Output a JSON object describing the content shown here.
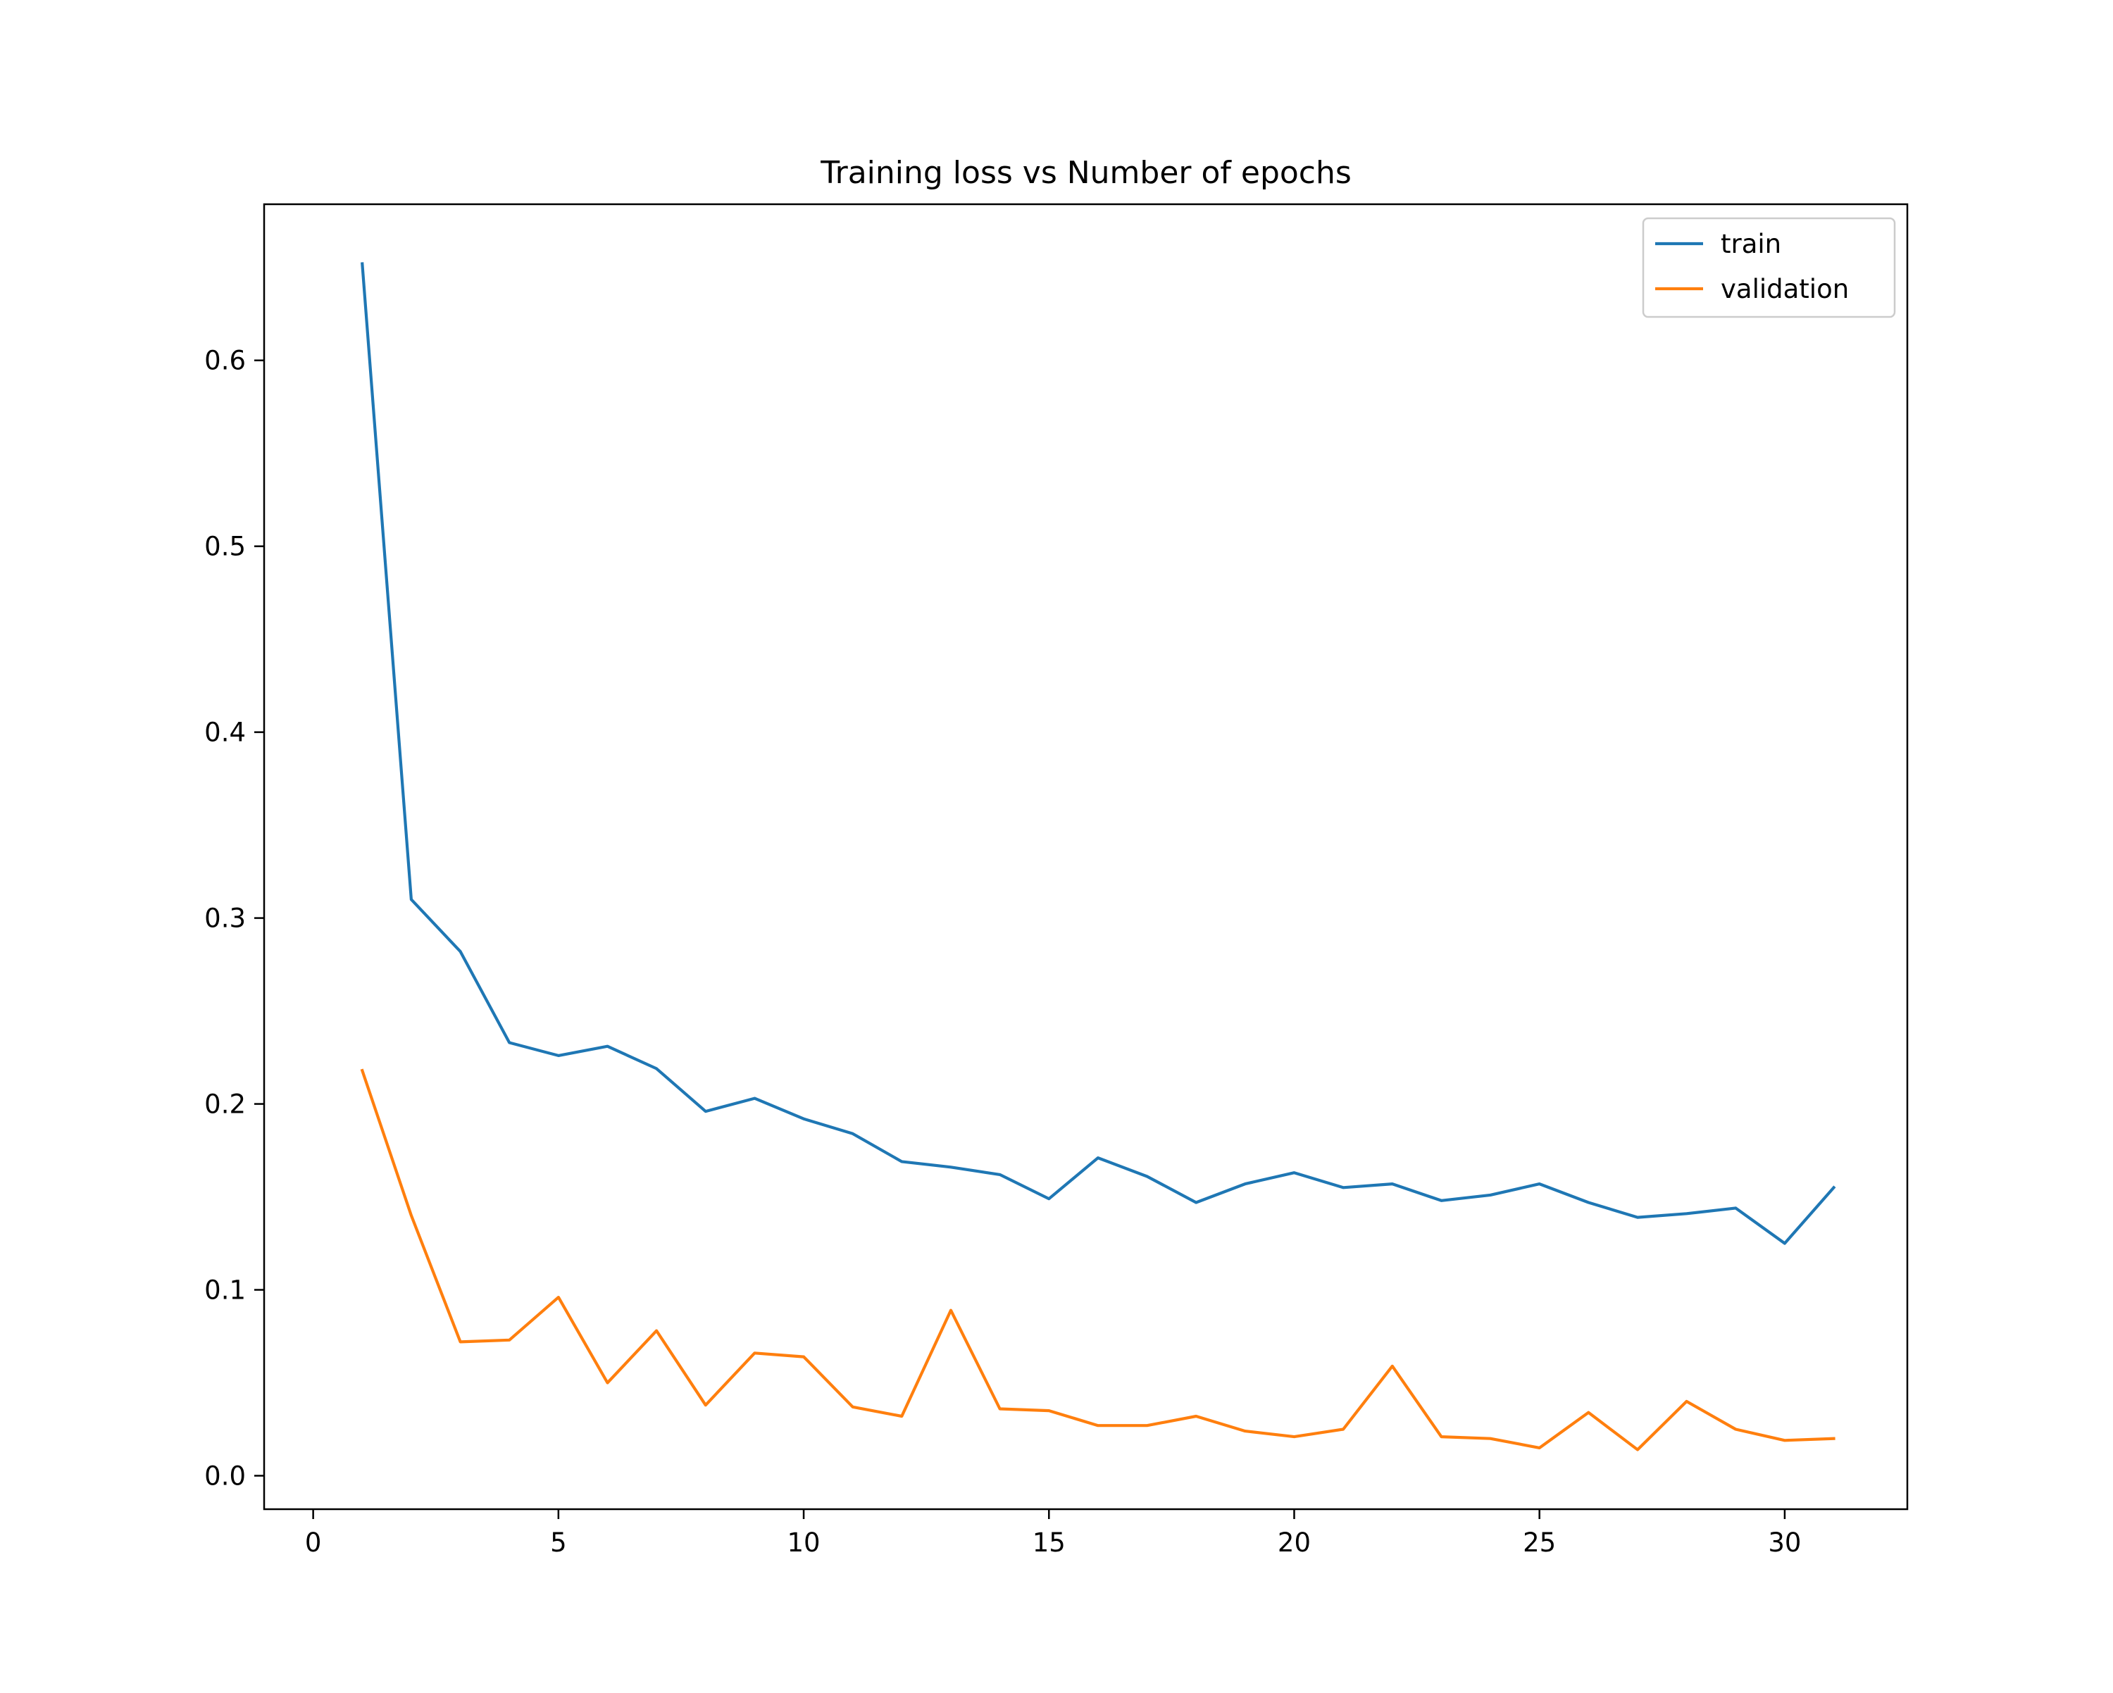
{
  "chart_data": {
    "type": "line",
    "title": "Training loss vs Number of epochs",
    "xlabel": "",
    "ylabel": "",
    "xlim": [
      -1.0,
      32.5
    ],
    "ylim": [
      -0.018,
      0.684
    ],
    "xticks": [
      0,
      5,
      10,
      15,
      20,
      25,
      30
    ],
    "xtick_labels": [
      "0",
      "5",
      "10",
      "15",
      "20",
      "25",
      "30"
    ],
    "yticks": [
      0.0,
      0.1,
      0.2,
      0.3,
      0.4,
      0.5,
      0.6
    ],
    "ytick_labels": [
      "0.0",
      "0.1",
      "0.2",
      "0.3",
      "0.4",
      "0.5",
      "0.6"
    ],
    "grid": false,
    "legend_position": "top-right",
    "x": [
      1,
      2,
      3,
      4,
      5,
      6,
      7,
      8,
      9,
      10,
      11,
      12,
      13,
      14,
      15,
      16,
      17,
      18,
      19,
      20,
      21,
      22,
      23,
      24,
      25,
      26,
      27,
      28,
      29,
      30,
      31
    ],
    "series": [
      {
        "name": "train",
        "color": "#1f77b4",
        "values": [
          0.652,
          0.31,
          0.282,
          0.233,
          0.226,
          0.231,
          0.219,
          0.196,
          0.203,
          0.192,
          0.184,
          0.169,
          0.166,
          0.162,
          0.149,
          0.171,
          0.161,
          0.147,
          0.157,
          0.163,
          0.155,
          0.157,
          0.148,
          0.151,
          0.157,
          0.147,
          0.139,
          0.141,
          0.144,
          0.125,
          0.155
        ]
      },
      {
        "name": "validation",
        "color": "#ff7f0e",
        "values": [
          0.218,
          0.14,
          0.072,
          0.073,
          0.096,
          0.05,
          0.078,
          0.038,
          0.066,
          0.064,
          0.037,
          0.032,
          0.089,
          0.036,
          0.035,
          0.027,
          0.027,
          0.032,
          0.024,
          0.021,
          0.025,
          0.059,
          0.021,
          0.02,
          0.015,
          0.034,
          0.014,
          0.04,
          0.025,
          0.019,
          0.02
        ]
      }
    ]
  }
}
